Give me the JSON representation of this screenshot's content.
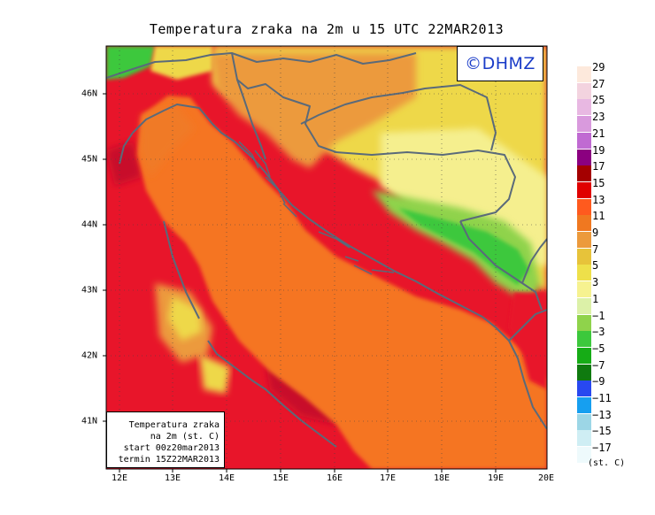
{
  "title": "Temperatura zraka na 2m u 15 UTC 22MAR2013",
  "logo": "©DHMZ",
  "info_box": [
    "Temperatura zraka",
    "na 2m (st. C)",
    "start 00z20mar2013",
    "termin 15Z22MAR2013"
  ],
  "lon_labels": [
    "12E",
    "13E",
    "14E",
    "15E",
    "16E",
    "17E",
    "18E",
    "19E",
    "20E"
  ],
  "lat_labels": [
    "46N",
    "45N",
    "44N",
    "43N",
    "42N",
    "41N"
  ],
  "legend": {
    "unit": "(st. C)",
    "ticks": [
      "29",
      "27",
      "25",
      "23",
      "21",
      "19",
      "17",
      "15",
      "13",
      "11",
      "9",
      "7",
      "5",
      "3",
      "1",
      "−1",
      "−3",
      "−5",
      "−7",
      "−9",
      "−11",
      "−13",
      "−15",
      "−17"
    ],
    "colors": [
      "#fde9dc",
      "#f3d3df",
      "#e8b8e2",
      "#d99add",
      "#c06ad2",
      "#8b0080",
      "#a40000",
      "#e00000",
      "#ff5a1e",
      "#f07820",
      "#ec9a3c",
      "#e7c33a",
      "#eee04a",
      "#f6f290",
      "#dcf1a8",
      "#8fd34b",
      "#3cc83c",
      "#16ac16",
      "#0f7a0f",
      "#2848f0",
      "#169ff0",
      "#9cd6e6",
      "#cfeef4",
      "#eefafc"
    ]
  },
  "map_colors": {
    "sea": "#f57420",
    "sea_land_bg": "#f07a28",
    "land_warm": "#e8152a",
    "land_hot": "#c8102a",
    "coast_orange": "#ec9a3c",
    "inland_yellow": "#eed84a",
    "pale": "#f5ef8e",
    "green": "#8fd34b",
    "dark_green": "#3cc83c",
    "border": "#5a6a7a"
  }
}
